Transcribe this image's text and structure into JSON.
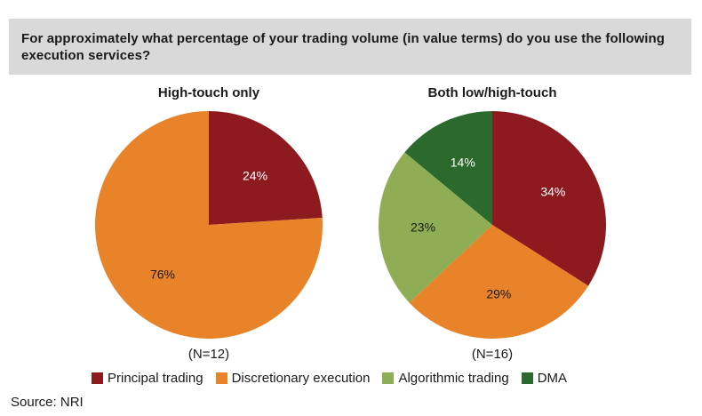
{
  "question": "For approximately what percentage of your trading volume (in value terms) do you use the following execution services?",
  "source": "Source: NRI",
  "colors": {
    "principal_trading": "#8c1a1e",
    "discretionary_execution": "#e8832a",
    "algorithmic_trading": "#8fad55",
    "dma": "#2b6a2c"
  },
  "legend": [
    {
      "label": "Principal trading",
      "color": "#8c1a1e"
    },
    {
      "label": "Discretionary execution",
      "color": "#e8832a"
    },
    {
      "label": "Algorithmic trading",
      "color": "#8fad55"
    },
    {
      "label": "DMA",
      "color": "#2b6a2c"
    }
  ],
  "chart_data": [
    {
      "type": "pie",
      "title": "High-touch only",
      "footnote": "(N=12)",
      "categories": [
        "Principal trading",
        "Discretionary execution"
      ],
      "values": [
        24,
        76
      ],
      "labels": [
        "24%",
        "76%"
      ],
      "colors": [
        "#8c1a1e",
        "#e8832a"
      ]
    },
    {
      "type": "pie",
      "title": "Both low/high-touch",
      "footnote": "(N=16)",
      "categories": [
        "Principal trading",
        "Discretionary execution",
        "Algorithmic trading",
        "DMA"
      ],
      "values": [
        34,
        29,
        23,
        14
      ],
      "labels": [
        "34%",
        "29%",
        "23%",
        "14%"
      ],
      "colors": [
        "#8c1a1e",
        "#e8832a",
        "#8fad55",
        "#2b6a2c"
      ]
    }
  ]
}
